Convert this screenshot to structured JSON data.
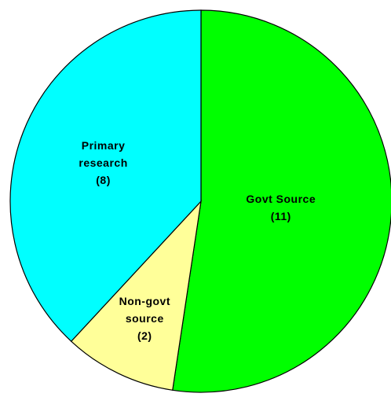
{
  "chart_data": {
    "type": "pie",
    "categories": [
      "Govt Source",
      "Non-govt source",
      "Primary research"
    ],
    "values": [
      11,
      2,
      8
    ],
    "value_labels": [
      "(11)",
      "(2)",
      "(8)"
    ],
    "colors": [
      "#00ff00",
      "#ffff99",
      "#00ffff"
    ],
    "start_angle": 0,
    "direction": "clockwise"
  }
}
